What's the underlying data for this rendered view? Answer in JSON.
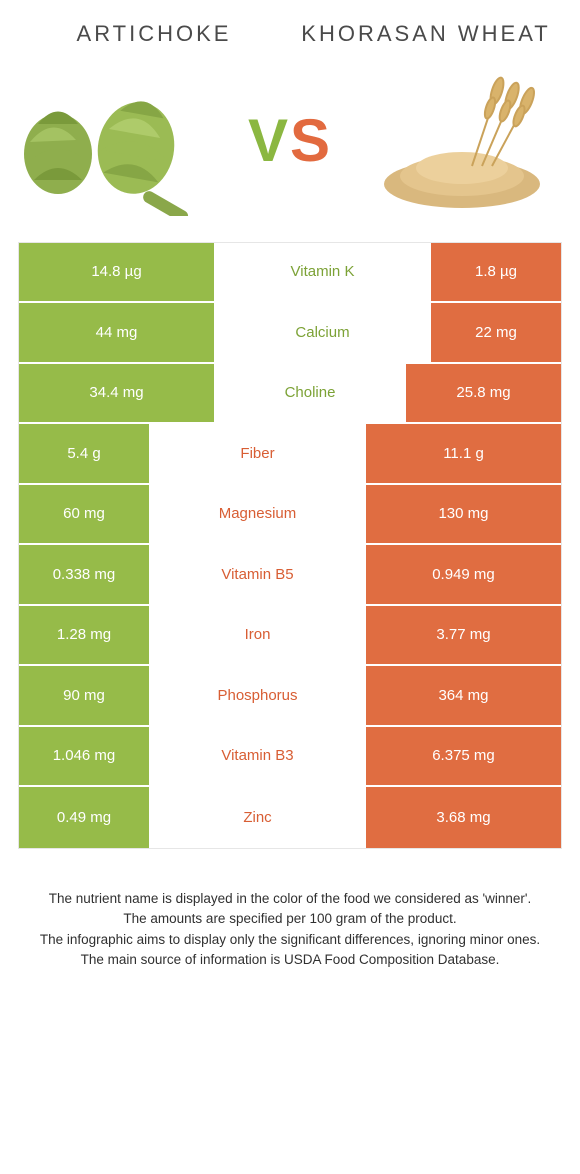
{
  "colors": {
    "green": "#96bb49",
    "orange": "#e06d41",
    "green_text": "#7ca236",
    "orange_text": "#d85e34"
  },
  "header": {
    "left_title": "ARTICHOKE",
    "right_title": "KHORASAN WHEAT",
    "vs": {
      "v": "V",
      "s": "S"
    }
  },
  "layout": {
    "full_bar_width": 195,
    "min_bar_width": 130
  },
  "rows": [
    {
      "nutrient": "Vitamin K",
      "left": "14.8 µg",
      "right": "1.8 µg",
      "winner": "left",
      "lw": 195,
      "rw": 130
    },
    {
      "nutrient": "Calcium",
      "left": "44 mg",
      "right": "22 mg",
      "winner": "left",
      "lw": 195,
      "rw": 130
    },
    {
      "nutrient": "Choline",
      "left": "34.4 mg",
      "right": "25.8 mg",
      "winner": "left",
      "lw": 195,
      "rw": 155
    },
    {
      "nutrient": "Fiber",
      "left": "5.4 g",
      "right": "11.1 g",
      "winner": "right",
      "lw": 130,
      "rw": 195
    },
    {
      "nutrient": "Magnesium",
      "left": "60 mg",
      "right": "130 mg",
      "winner": "right",
      "lw": 130,
      "rw": 195
    },
    {
      "nutrient": "Vitamin B5",
      "left": "0.338 mg",
      "right": "0.949 mg",
      "winner": "right",
      "lw": 130,
      "rw": 195
    },
    {
      "nutrient": "Iron",
      "left": "1.28 mg",
      "right": "3.77 mg",
      "winner": "right",
      "lw": 130,
      "rw": 195
    },
    {
      "nutrient": "Phosphorus",
      "left": "90 mg",
      "right": "364 mg",
      "winner": "right",
      "lw": 130,
      "rw": 195
    },
    {
      "nutrient": "Vitamin B3",
      "left": "1.046 mg",
      "right": "6.375 mg",
      "winner": "right",
      "lw": 130,
      "rw": 195
    },
    {
      "nutrient": "Zinc",
      "left": "0.49 mg",
      "right": "3.68 mg",
      "winner": "right",
      "lw": 130,
      "rw": 195
    }
  ],
  "footnotes": [
    "The nutrient name is displayed in the color of the food we considered as 'winner'.",
    "The amounts are specified per 100 gram of the product.",
    "The infographic aims to display only the significant differences, ignoring minor ones.",
    "The main source of information is USDA Food Composition Database."
  ]
}
